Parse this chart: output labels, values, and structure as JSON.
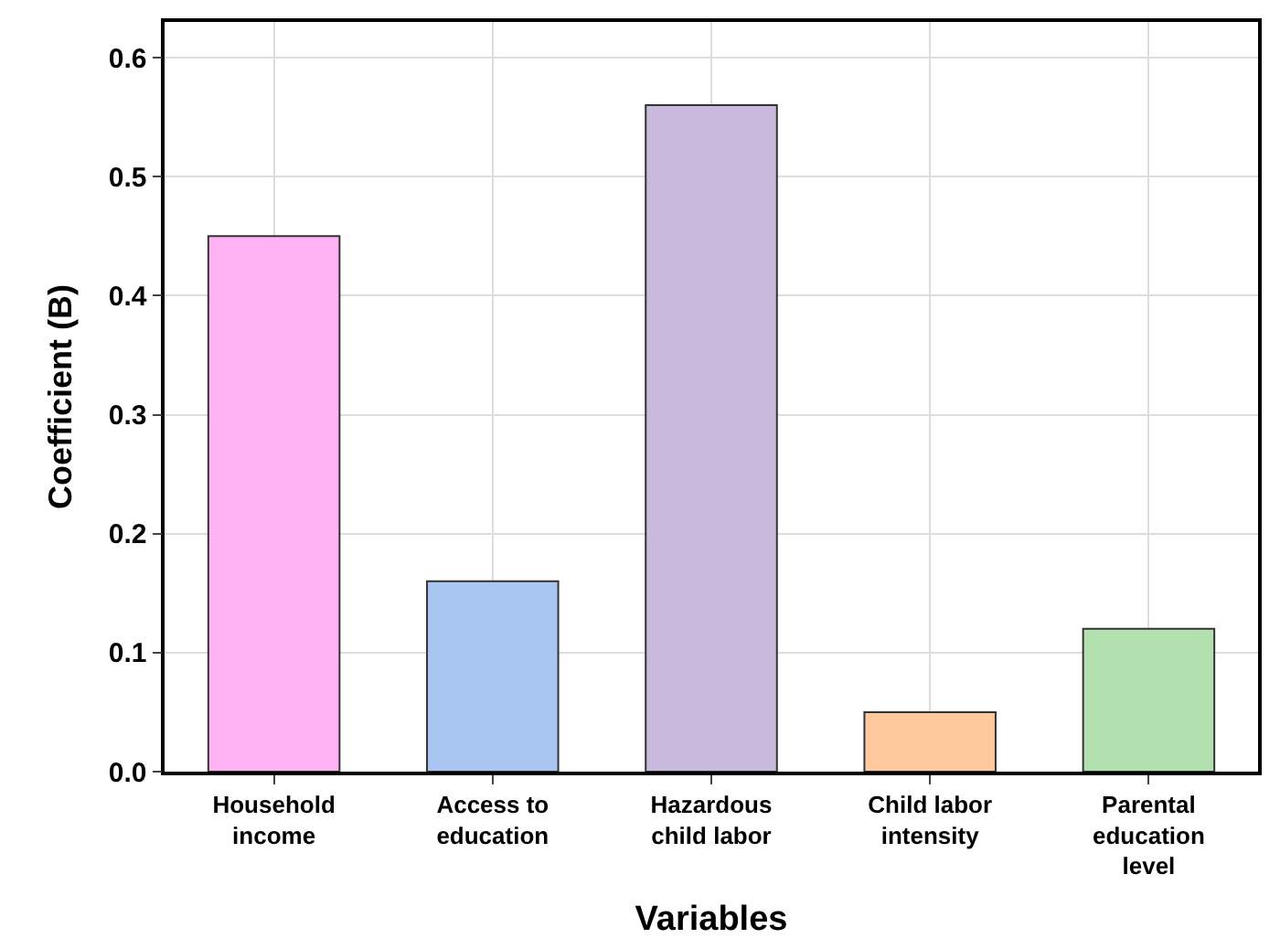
{
  "chart_data": {
    "type": "bar",
    "xlabel": "Variables",
    "ylabel": "Coefficient (B)",
    "categories": [
      "Household income",
      "Access to education",
      "Hazardous child labor",
      "Child labor intensity",
      "Parental education level"
    ],
    "values": [
      0.45,
      0.16,
      0.56,
      0.05,
      0.12
    ],
    "colors": [
      "#ffb3f5",
      "#a9c6f2",
      "#c9b9dd",
      "#fdc99d",
      "#b2e0ae"
    ],
    "ylim": [
      0,
      0.63
    ],
    "yticks": [
      {
        "value": 0,
        "label": "0.0"
      },
      0.1,
      0.2,
      0.3,
      0.4,
      0.5,
      0.6
    ],
    "grid": true
  }
}
